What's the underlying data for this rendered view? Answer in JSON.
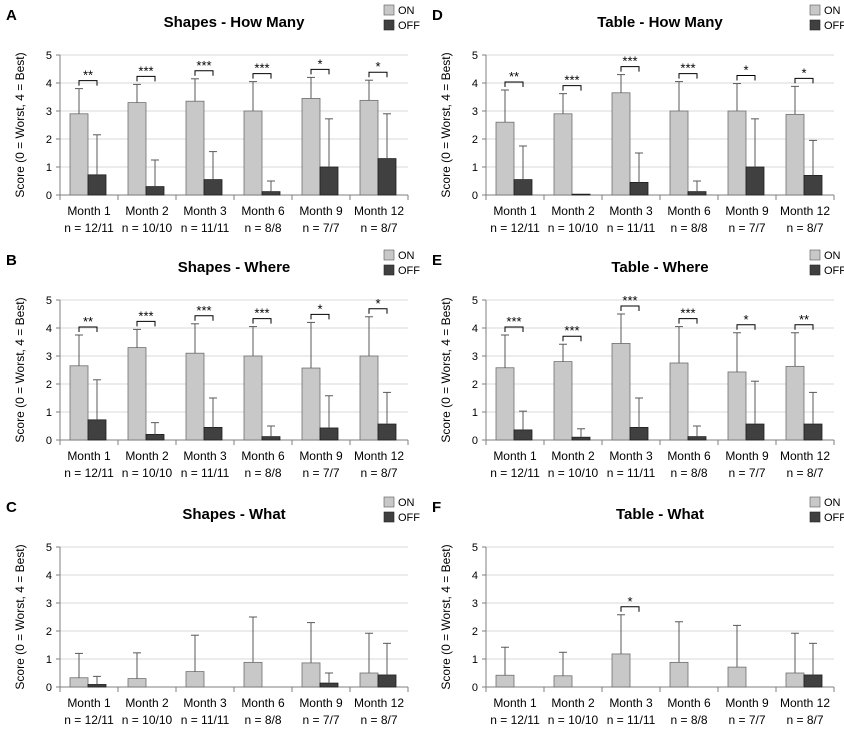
{
  "legend_on": "ON",
  "legend_off": "OFF",
  "ylabel": "Score (0 = Worst, 4 = Best)",
  "categories": [
    "Month 1",
    "Month 2",
    "Month 3",
    "Month 6",
    "Month 9",
    "Month 12"
  ],
  "n_labels": [
    "n = 12/11",
    "n = 10/10",
    "n = 11/11",
    "n = 8/8",
    "n = 7/7",
    "n = 8/7"
  ],
  "yticks": [
    "0",
    "1",
    "2",
    "3",
    "4",
    "5"
  ],
  "colors": {
    "on": "#c8c8c8",
    "off": "#404040"
  },
  "chart_data": [
    {
      "type": "bar",
      "panel": "A",
      "title": "Shapes - How Many",
      "ylim": [
        0,
        5
      ],
      "series": [
        {
          "name": "ON",
          "values": [
            2.9,
            3.3,
            3.35,
            3.0,
            3.45,
            3.38
          ],
          "error": [
            0.9,
            0.65,
            0.8,
            1.05,
            0.75,
            0.72
          ]
        },
        {
          "name": "OFF",
          "values": [
            0.72,
            0.3,
            0.55,
            0.12,
            1.0,
            1.3
          ],
          "error": [
            1.43,
            0.95,
            1.0,
            0.38,
            1.72,
            1.6
          ]
        }
      ],
      "significance": [
        "**",
        "***",
        "***",
        "***",
        "*",
        "*"
      ]
    },
    {
      "type": "bar",
      "panel": "D",
      "title": "Table - How Many",
      "ylim": [
        0,
        5
      ],
      "series": [
        {
          "name": "ON",
          "values": [
            2.6,
            2.9,
            3.65,
            3.0,
            3.0,
            2.88
          ],
          "error": [
            1.15,
            0.72,
            0.65,
            1.05,
            0.98,
            1.0
          ]
        },
        {
          "name": "OFF",
          "values": [
            0.55,
            0.03,
            0.45,
            0.12,
            1.0,
            0.7
          ],
          "error": [
            1.2,
            0.0,
            1.05,
            0.38,
            1.72,
            1.25
          ]
        }
      ],
      "significance": [
        "**",
        "***",
        "***",
        "***",
        "*",
        "*"
      ]
    },
    {
      "type": "bar",
      "panel": "B",
      "title": "Shapes - Where",
      "ylim": [
        0,
        5
      ],
      "series": [
        {
          "name": "ON",
          "values": [
            2.65,
            3.3,
            3.1,
            3.0,
            2.57,
            3.0
          ],
          "error": [
            1.1,
            0.65,
            1.05,
            1.05,
            1.63,
            1.4
          ]
        },
        {
          "name": "OFF",
          "values": [
            0.72,
            0.2,
            0.45,
            0.12,
            0.43,
            0.57
          ],
          "error": [
            1.43,
            0.42,
            1.05,
            0.38,
            1.15,
            1.13
          ]
        }
      ],
      "significance": [
        "**",
        "***",
        "***",
        "***",
        "*",
        "*"
      ]
    },
    {
      "type": "bar",
      "panel": "E",
      "title": "Table - Where",
      "ylim": [
        0,
        5
      ],
      "series": [
        {
          "name": "ON",
          "values": [
            2.58,
            2.8,
            3.45,
            2.75,
            2.43,
            2.63
          ],
          "error": [
            1.17,
            0.62,
            1.05,
            1.3,
            1.4,
            1.2
          ]
        },
        {
          "name": "OFF",
          "values": [
            0.36,
            0.1,
            0.45,
            0.12,
            0.57,
            0.57
          ],
          "error": [
            0.67,
            0.3,
            1.05,
            0.38,
            1.53,
            1.13
          ]
        }
      ],
      "significance": [
        "***",
        "***",
        "***",
        "***",
        "*",
        "**"
      ]
    },
    {
      "type": "bar",
      "panel": "C",
      "title": "Shapes - What",
      "ylim": [
        0,
        5
      ],
      "series": [
        {
          "name": "ON",
          "values": [
            0.33,
            0.3,
            0.55,
            0.88,
            0.86,
            0.5
          ],
          "error": [
            0.87,
            0.92,
            1.3,
            1.62,
            1.44,
            1.42
          ]
        },
        {
          "name": "OFF",
          "values": [
            0.09,
            0.0,
            0.0,
            0.0,
            0.14,
            0.43
          ],
          "error": [
            0.29,
            0.0,
            0.0,
            0.0,
            0.36,
            1.13
          ]
        }
      ],
      "significance": [
        "",
        "",
        "",
        "",
        "",
        ""
      ]
    },
    {
      "type": "bar",
      "panel": "F",
      "title": "Table - What",
      "ylim": [
        0,
        5
      ],
      "series": [
        {
          "name": "ON",
          "values": [
            0.42,
            0.4,
            1.18,
            0.88,
            0.71,
            0.5
          ],
          "error": [
            1.0,
            0.84,
            1.4,
            1.45,
            1.49,
            1.42
          ]
        },
        {
          "name": "OFF",
          "values": [
            0.0,
            0.0,
            0.0,
            0.0,
            0.0,
            0.43
          ],
          "error": [
            0.0,
            0.0,
            0.0,
            0.0,
            0.0,
            1.13
          ]
        }
      ],
      "significance": [
        "",
        "",
        "*",
        "",
        "",
        ""
      ]
    }
  ]
}
